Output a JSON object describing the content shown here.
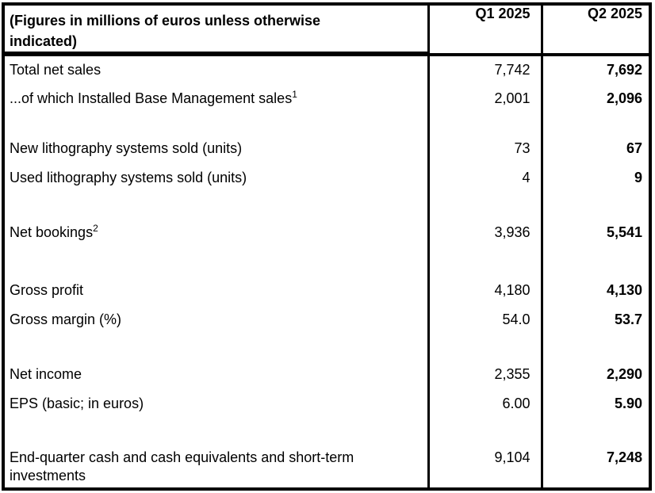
{
  "document": {
    "type": "quarterly-financial-results-table",
    "colors": {
      "text": "#000000",
      "border": "#000000",
      "background": "#ffffff"
    },
    "table": {
      "header": {
        "label_line1": "(Figures in millions of euros unless otherwise",
        "label_line2": "indicated)",
        "q1": "Q1 2025",
        "q2": "Q2 2025"
      },
      "rows": [
        {
          "label": "Total net sales",
          "sup": "",
          "q1": "7,742",
          "q2": "7,692"
        },
        {
          "label": "...of which Installed Base Management sales",
          "sup": "1",
          "q1": "2,001",
          "q2": "2,096"
        },
        {
          "label": "New lithography systems sold (units)",
          "sup": "",
          "q1": "73",
          "q2": "67"
        },
        {
          "label": "Used lithography systems sold (units)",
          "sup": "",
          "q1": "4",
          "q2": "9"
        },
        {
          "label": "Net bookings",
          "sup": "2",
          "q1": "3,936",
          "q2": "5,541"
        },
        {
          "label": "Gross profit",
          "sup": "",
          "q1": "4,180",
          "q2": "4,130"
        },
        {
          "label": "Gross margin (%)",
          "sup": "",
          "q1": "54.0",
          "q2": "53.7"
        },
        {
          "label": "Net income",
          "sup": "",
          "q1": "2,355",
          "q2": "2,290"
        },
        {
          "label": "EPS (basic; in euros)",
          "sup": "",
          "q1": "6.00",
          "q2": "5.90"
        },
        {
          "label": "End-quarter cash and cash equivalents and short-term investments",
          "sup": "",
          "q1": "9,104",
          "q2": "7,248"
        }
      ]
    }
  }
}
